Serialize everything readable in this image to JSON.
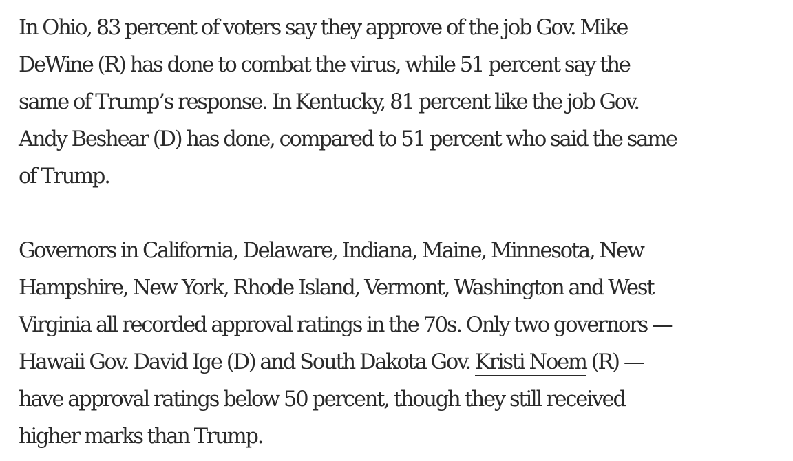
{
  "article": {
    "paragraphs": [
      {
        "lines": [
          "In Ohio, 83 percent of voters say they approve of the job Gov. Mike",
          "DeWine (R) has done to combat the virus, while 51 percent say the",
          "same of Trump’s response. In Kentucky, 81 percent like the job Gov.",
          "Andy Beshear (D) has done, compared to 51 percent who said the same",
          "of Trump."
        ]
      },
      {
        "lines": [
          "Governors in California, Delaware, Indiana, Maine, Minnesota, New",
          "Hampshire, New York, Rhode Island, Vermont, Washington and West",
          "Virginia all recorded approval ratings in the 70s. Only two governors —"
        ],
        "line4": {
          "before_link": "Hawaii Gov. David Ige (D) and South Dakota Gov. ",
          "link_text": "Kristi Noem",
          "after_link": " (R) —"
        },
        "lines_after": [
          "have approval ratings below 50 percent, though they still received",
          "higher marks than Trump."
        ]
      }
    ]
  }
}
